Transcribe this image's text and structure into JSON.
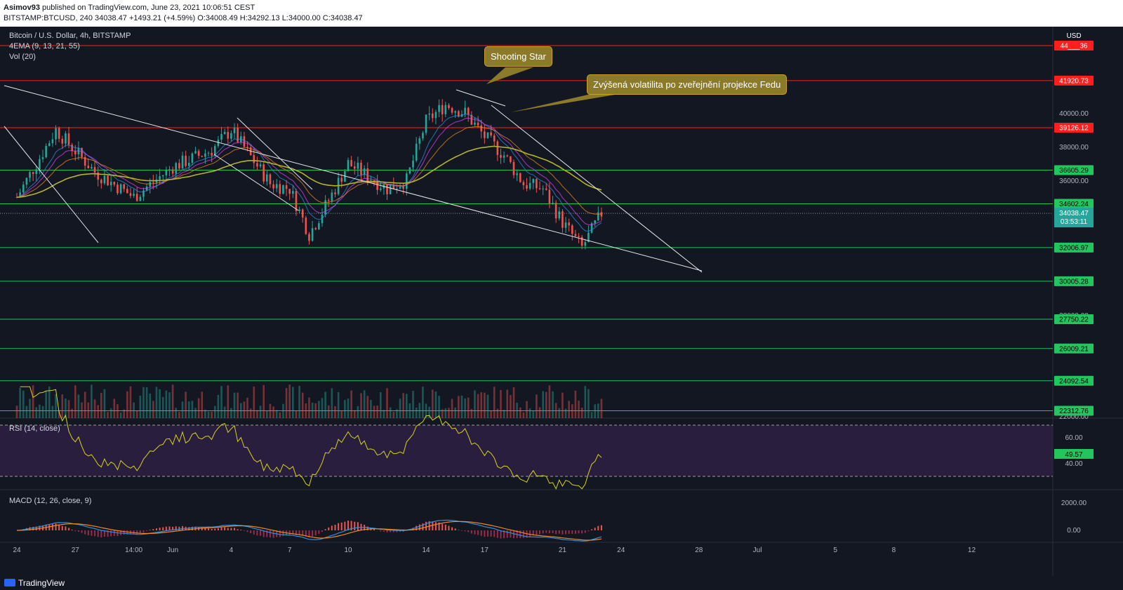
{
  "header": {
    "publisher": "Asimov93",
    "published_text": "published on TradingView.com, June 23, 2021 10:06:51 CEST",
    "symbol": "BITSTAMP:BTCUSD, 240",
    "last": "34038.47",
    "change": "+1493.21 (+4.59%)",
    "ohlc": "O:34008.49 H:34292.13 L:34000.00 C:34038.47"
  },
  "legend": {
    "title": "Bitcoin / U.S. Dollar, 4h, BITSTAMP",
    "ema": "4EMA (9, 13, 21, 55)",
    "vol": "Vol (20)",
    "rsi": "RSI (14, close)",
    "macd": "MACD (12, 26, close, 9)"
  },
  "annotations": {
    "shooting_star": "Shooting Star",
    "fed": "Zvýšená volatilita po zveřejnění projekce Fedu"
  },
  "axis": {
    "currency": "USD",
    "price_ticks": [
      "40000.00",
      "38000.00",
      "36000.00",
      "28000.00",
      "22000.00"
    ],
    "rsi_ticks": [
      "60.00",
      "40.00"
    ],
    "macd_ticks": [
      "2000.00",
      "0.00"
    ],
    "time_labels": [
      "24",
      "27",
      "14:00",
      "Jun",
      "4",
      "7",
      "10",
      "14",
      "17",
      "21",
      "24",
      "28",
      "Jul",
      "5",
      "8",
      "12"
    ],
    "last_price_tag": "34038.47",
    "countdown": "03:53:11",
    "rsi_tag": "49.57"
  },
  "levels": [
    {
      "label": "44___36",
      "kind": "red"
    },
    {
      "label": "41920.73",
      "kind": "red"
    },
    {
      "label": "39126.12",
      "kind": "red"
    },
    {
      "label": "36605.29",
      "kind": "green"
    },
    {
      "label": "34602.24",
      "kind": "green"
    },
    {
      "label": "32006.97",
      "kind": "green"
    },
    {
      "label": "30005.28",
      "kind": "green"
    },
    {
      "label": "27750.22",
      "kind": "green"
    },
    {
      "label": "26009.21",
      "kind": "green"
    },
    {
      "label": "24092.54",
      "kind": "green"
    },
    {
      "label": "22312.76",
      "kind": "green"
    }
  ],
  "colors": {
    "background": "#131722",
    "up": "#26a69a",
    "down": "#ef5350",
    "level_red": "#ff1e1e",
    "level_green": "#22c55e",
    "ema55": "#b5b52a",
    "rsi": "#d6d21e",
    "rsi_band": "#2a1e3f",
    "macd": "#2f8fe0",
    "signal": "#f08a24",
    "callout": "#8b7a2a"
  },
  "footer": {
    "brand": "TradingView"
  },
  "chart_data": {
    "type": "candlestick",
    "title": "Bitcoin / U.S. Dollar, 4h, BITSTAMP",
    "x_range": [
      "2021-05-24",
      "2021-07-14"
    ],
    "y_range": [
      22000,
      44500
    ],
    "close_path": [
      {
        "date": "2021-05-24",
        "close": 35000
      },
      {
        "date": "2021-05-26",
        "close": 39000
      },
      {
        "date": "2021-05-28",
        "close": 36500
      },
      {
        "date": "2021-05-30",
        "close": 35000
      },
      {
        "date": "2021-06-01",
        "close": 36800
      },
      {
        "date": "2021-06-03",
        "close": 37800
      },
      {
        "date": "2021-06-04",
        "close": 39000
      },
      {
        "date": "2021-06-06",
        "close": 35800
      },
      {
        "date": "2021-06-07",
        "close": 35500
      },
      {
        "date": "2021-06-08",
        "close": 32800
      },
      {
        "date": "2021-06-09",
        "close": 34800
      },
      {
        "date": "2021-06-10",
        "close": 37000
      },
      {
        "date": "2021-06-12",
        "close": 35500
      },
      {
        "date": "2021-06-13",
        "close": 36000
      },
      {
        "date": "2021-06-14",
        "close": 39500
      },
      {
        "date": "2021-06-15",
        "close": 40500
      },
      {
        "date": "2021-06-16",
        "close": 40000
      },
      {
        "date": "2021-06-17",
        "close": 38600
      },
      {
        "date": "2021-06-18",
        "close": 37500
      },
      {
        "date": "2021-06-19",
        "close": 35800
      },
      {
        "date": "2021-06-20",
        "close": 35500
      },
      {
        "date": "2021-06-21",
        "close": 33500
      },
      {
        "date": "2021-06-22",
        "close": 32000
      },
      {
        "date": "2021-06-23",
        "close": 34038.47
      }
    ],
    "rsi_latest": 49.57
  }
}
